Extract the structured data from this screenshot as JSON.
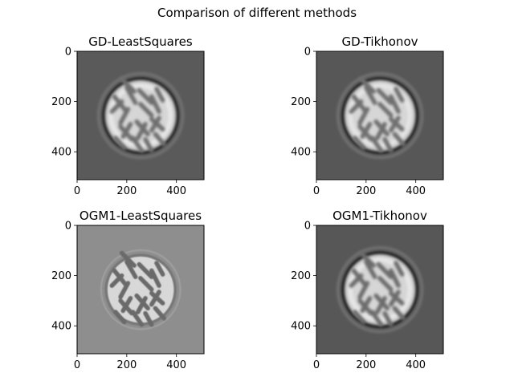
{
  "figure": {
    "suptitle": "Comparison of different methods"
  },
  "chart_data": [
    {
      "type": "image",
      "title": "GD-LeastSquares",
      "xlim": [
        0,
        511
      ],
      "ylim": [
        511,
        0
      ],
      "xticks": [
        0,
        200,
        400
      ],
      "yticks": [
        0,
        200,
        400
      ],
      "colormap": "gray",
      "image": {
        "background": "#5a5a5a",
        "disk_center": [
          256,
          256
        ],
        "disk_radius": 150,
        "disk_fill": "#e6e6e6",
        "ring_color": "#1e1e1e",
        "blob_color": "#6e6e6e",
        "blurred": true
      }
    },
    {
      "type": "image",
      "title": "GD-Tikhonov",
      "xlim": [
        0,
        511
      ],
      "ylim": [
        511,
        0
      ],
      "xticks": [
        0,
        200,
        400
      ],
      "yticks": [
        0,
        200,
        400
      ],
      "colormap": "gray",
      "image": {
        "background": "#575757",
        "disk_center": [
          256,
          256
        ],
        "disk_radius": 150,
        "disk_fill": "#e4e4e4",
        "ring_color": "#1c1c1c",
        "blob_color": "#707070",
        "blurred": true
      }
    },
    {
      "type": "image",
      "title": "OGM1-LeastSquares",
      "xlim": [
        0,
        511
      ],
      "ylim": [
        511,
        0
      ],
      "xticks": [
        0,
        200,
        400
      ],
      "yticks": [
        0,
        200,
        400
      ],
      "colormap": "gray",
      "image": {
        "background": "#8e8e8e",
        "disk_center": [
          256,
          256
        ],
        "disk_radius": 140,
        "disk_fill": "#d8d8d8",
        "ring_color": "#777777",
        "blob_color": "#6a6a6a",
        "blurred": false
      }
    },
    {
      "type": "image",
      "title": "OGM1-Tikhonov",
      "xlim": [
        0,
        511
      ],
      "ylim": [
        511,
        0
      ],
      "xticks": [
        0,
        200,
        400
      ],
      "yticks": [
        0,
        200,
        400
      ],
      "colormap": "gray",
      "image": {
        "background": "#575757",
        "disk_center": [
          256,
          256
        ],
        "disk_radius": 150,
        "disk_fill": "#e6e6e6",
        "ring_color": "#161616",
        "blob_color": "#6c6c6c",
        "blurred": true
      }
    }
  ]
}
